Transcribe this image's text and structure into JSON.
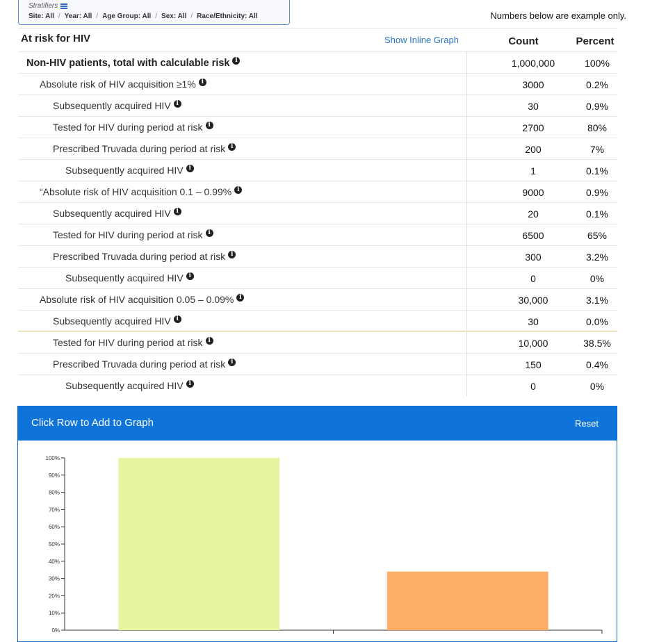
{
  "stratifiers": {
    "title": "Stratifiers",
    "items": [
      "Site: All",
      "Year: All",
      "Age Group: All",
      "Sex: All",
      "Race/Ethnicity: All"
    ]
  },
  "note": "Numbers below are example only.",
  "table": {
    "title": "At risk for HIV",
    "inline_graph_link": "Show Inline Graph",
    "count_header": "Count",
    "percent_header": "Percent",
    "rows": [
      {
        "label": "Non-HIV patients, total with calculable risk",
        "count": "1,000,000",
        "percent": "100%",
        "level": 0
      },
      {
        "label": "Absolute risk of HIV acquisition ≥1%",
        "count": "3000",
        "percent": "0.2%",
        "level": 1
      },
      {
        "label": "Subsequently acquired HIV",
        "count": "30",
        "percent": "0.9%",
        "level": 2
      },
      {
        "label": "Tested for HIV during period at risk",
        "count": "2700",
        "percent": "80%",
        "level": 2
      },
      {
        "label": "Prescribed Truvada during period at risk",
        "count": "200",
        "percent": "7%",
        "level": 2
      },
      {
        "label": "Subsequently acquired HIV",
        "count": "1",
        "percent": "0.1%",
        "level": 3
      },
      {
        "label": "“Absolute risk of HIV acquisition 0.1 – 0.99%",
        "count": "9000",
        "percent": "0.9%",
        "level": 1
      },
      {
        "label": "Subsequently acquired HIV",
        "count": "20",
        "percent": "0.1%",
        "level": 2
      },
      {
        "label": "Tested for HIV during period at risk",
        "count": "6500",
        "percent": "65%",
        "level": 2
      },
      {
        "label": "Prescribed Truvada during period at risk",
        "count": "300",
        "percent": "3.2%",
        "level": 2
      },
      {
        "label": "Subsequently acquired HIV",
        "count": "0",
        "percent": "0%",
        "level": 3
      },
      {
        "label": "Absolute risk of HIV acquisition 0.05 – 0.09%",
        "count": "30,000",
        "percent": "3.1%",
        "level": 1
      },
      {
        "label": "Subsequently acquired HIV",
        "count": "30",
        "percent": "0.0%",
        "level": 2
      },
      {
        "label": "Tested for HIV during period at risk",
        "count": "10,000",
        "percent": "38.5%",
        "level": 2
      },
      {
        "label": "Prescribed Truvada during period at risk",
        "count": "150",
        "percent": "0.4%",
        "level": 2
      },
      {
        "label": "Subsequently acquired HIV",
        "count": "0",
        "percent": "0%",
        "level": 3
      }
    ]
  },
  "graph_panel": {
    "title": "Click Row to Add to Graph",
    "reset_label": "Reset"
  },
  "chart_data": {
    "type": "bar",
    "values": [
      100,
      34
    ],
    "colors": [
      "#e8f5a0",
      "#fdae66"
    ],
    "ylim": [
      0,
      100
    ],
    "yticks": [
      "0%",
      "10%",
      "20%",
      "30%",
      "40%",
      "50%",
      "60%",
      "70%",
      "80%",
      "90%",
      "100%"
    ],
    "grid": false
  }
}
